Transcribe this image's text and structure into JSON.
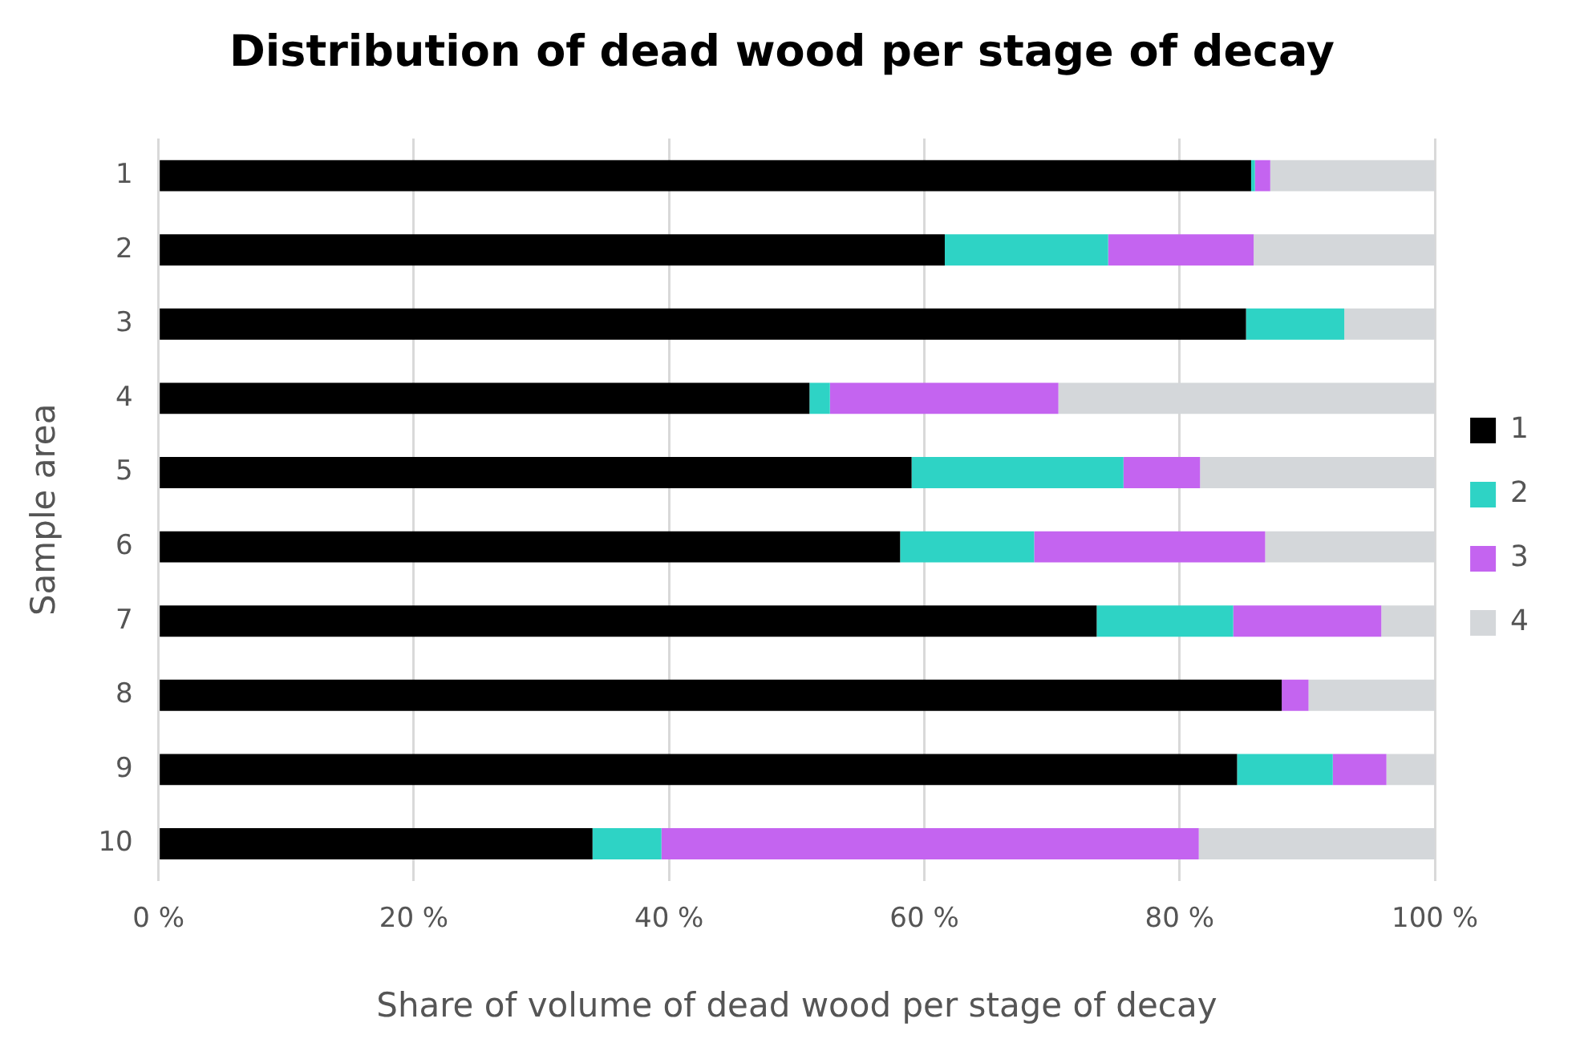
{
  "chart_data": {
    "type": "bar",
    "orientation": "horizontal",
    "stacked": true,
    "title": "Distribution of dead wood per stage of decay",
    "xlabel": "Share of volume of dead wood per stage of decay",
    "ylabel": "Sample area",
    "categories": [
      "1",
      "2",
      "3",
      "4",
      "5",
      "6",
      "7",
      "8",
      "9",
      "10"
    ],
    "series": [
      {
        "name": "1",
        "color": "#000000",
        "values": [
          85.6,
          61.6,
          85.2,
          51.0,
          59.0,
          58.1,
          73.5,
          88.0,
          84.5,
          34.0
        ]
      },
      {
        "name": "2",
        "color": "#2ed3c5",
        "values": [
          0.3,
          12.8,
          7.7,
          1.6,
          16.6,
          10.5,
          10.7,
          0,
          7.5,
          5.4
        ]
      },
      {
        "name": "3",
        "color": "#c464f0",
        "values": [
          1.2,
          11.4,
          0,
          17.9,
          6.0,
          18.1,
          11.6,
          2.1,
          4.2,
          42.1
        ]
      },
      {
        "name": "4",
        "color": "#d4d7da",
        "values": [
          12.9,
          14.2,
          7.1,
          29.5,
          18.4,
          13.3,
          4.2,
          9.9,
          3.8,
          18.5
        ]
      }
    ],
    "xlim": [
      0,
      100
    ],
    "xticks": [
      {
        "value": 0,
        "label": "0 %"
      },
      {
        "value": 20,
        "label": "20 %"
      },
      {
        "value": 40,
        "label": "40 %"
      },
      {
        "value": 60,
        "label": "60 %"
      },
      {
        "value": 80,
        "label": "80 %"
      },
      {
        "value": 100,
        "label": "100 %"
      }
    ],
    "grid": "x",
    "legend": "right"
  }
}
